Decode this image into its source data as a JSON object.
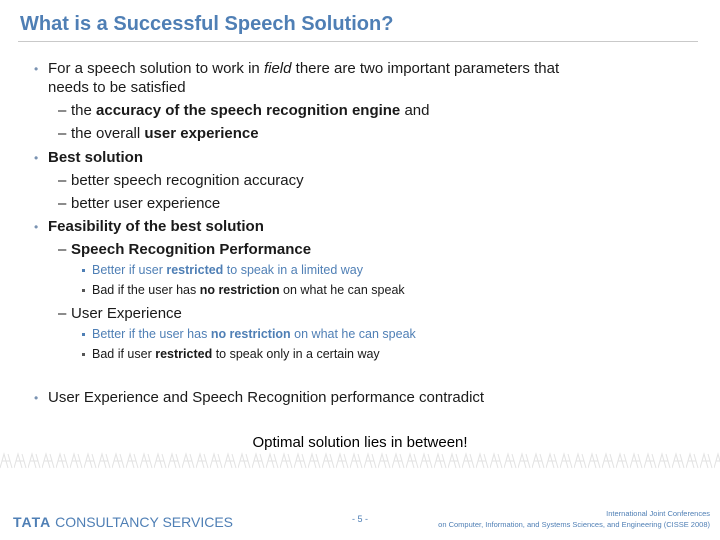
{
  "slide": {
    "title": "What is a Successful Speech Solution?",
    "bullets": {
      "b1": {
        "pre": "For a speech solution to work in ",
        "em": "field",
        "post": " there are two important parameters that",
        "cont": "needs to be satisfied",
        "sub1": {
          "pre": "the ",
          "bold": "accuracy of the speech recognition engine",
          "post": " and"
        },
        "sub2": {
          "pre": "the overall ",
          "bold": "user experience"
        }
      },
      "b2": {
        "label": "Best solution",
        "sub1": "better speech recognition accuracy",
        "sub2": "better user experience"
      },
      "b3": {
        "label": "Feasibility of the best solution",
        "sub1": {
          "label": "Speech Recognition Performance",
          "i1": {
            "pre": "Better if user ",
            "bold": "restricted",
            "post": " to speak in a limited way"
          },
          "i2": {
            "pre": "Bad if the user has ",
            "bold": "no restriction",
            "post": " on what he can speak"
          }
        },
        "sub2": {
          "label": "User Experience",
          "i1": {
            "pre": "Better if the user has ",
            "bold": "no restriction",
            "post": " on what he can speak"
          },
          "i2": {
            "pre": "Bad if user ",
            "bold": "restricted",
            "post": " to speak only in a certain way"
          }
        }
      },
      "b4": "User Experience and Speech Recognition performance contradict"
    },
    "conclusion": "Optimal solution lies in between!"
  },
  "footer": {
    "logo_tata": "TATA",
    "logo_rest": "CONSULTANCY SERVICES",
    "page_number": "- 5 -",
    "conference_line1": "International Joint Conferences",
    "conference_line2": "on Computer, Information, and Systems Sciences, and Engineering (CISSE 2008)"
  },
  "colors": {
    "accent": "#4f7fb5",
    "text": "#1a1a1a"
  }
}
